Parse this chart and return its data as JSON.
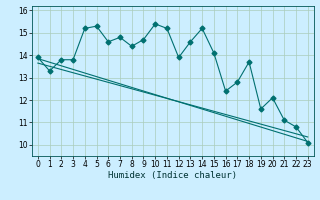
{
  "xlabel": "Humidex (Indice chaleur)",
  "ylabel": "",
  "xlim": [
    -0.5,
    23.5
  ],
  "ylim": [
    9.5,
    16.2
  ],
  "yticks": [
    10,
    11,
    12,
    13,
    14,
    15,
    16
  ],
  "xticks": [
    0,
    1,
    2,
    3,
    4,
    5,
    6,
    7,
    8,
    9,
    10,
    11,
    12,
    13,
    14,
    15,
    16,
    17,
    18,
    19,
    20,
    21,
    22,
    23
  ],
  "bg_color": "#cceeff",
  "grid_color": "#aaccbb",
  "line_color": "#007070",
  "line1_x": [
    0,
    1,
    2,
    3,
    4,
    5,
    6,
    7,
    8,
    9,
    10,
    11,
    12,
    13,
    14,
    15,
    16,
    17,
    18,
    19,
    20,
    21,
    22,
    23
  ],
  "line1_y": [
    13.9,
    13.3,
    13.8,
    13.8,
    15.2,
    15.3,
    14.6,
    14.8,
    14.4,
    14.7,
    15.4,
    15.2,
    13.9,
    14.6,
    15.2,
    14.1,
    12.4,
    12.8,
    13.7,
    11.6,
    12.1,
    11.1,
    10.8,
    10.1
  ],
  "line2_x": [
    0,
    23
  ],
  "line2_y": [
    13.85,
    10.15
  ],
  "line3_x": [
    0,
    23
  ],
  "line3_y": [
    13.65,
    10.35
  ],
  "marker_size": 2.5,
  "linewidth": 0.8,
  "tick_fontsize": 5.5,
  "xlabel_fontsize": 6.5
}
